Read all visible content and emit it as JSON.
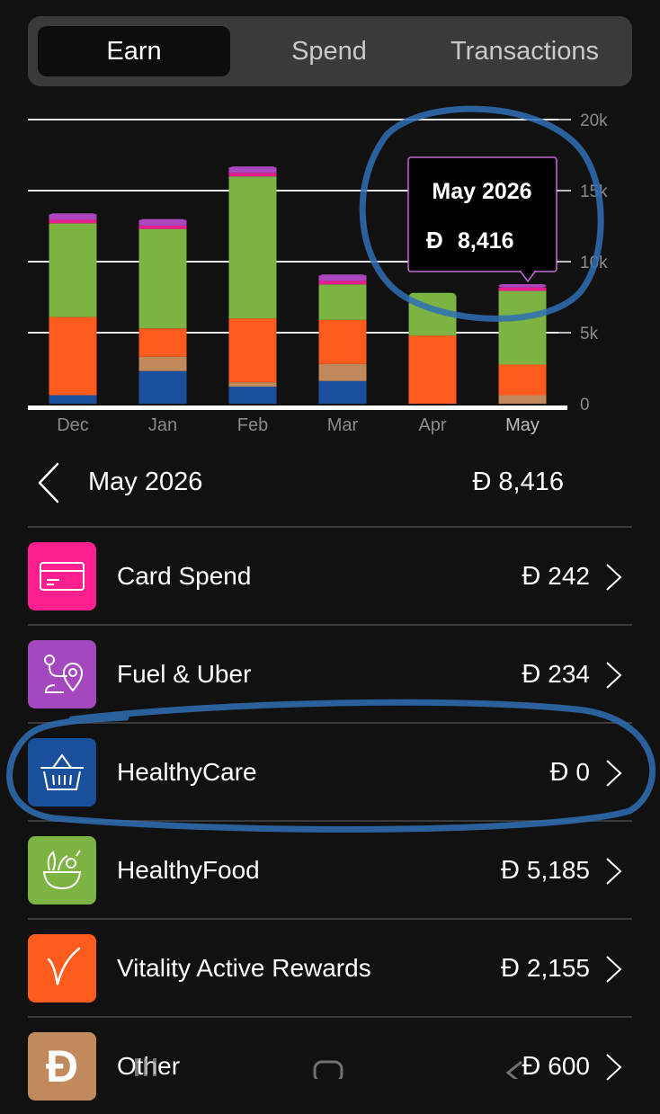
{
  "tabs": [
    {
      "label": "Earn",
      "active": true
    },
    {
      "label": "Spend",
      "active": false
    },
    {
      "label": "Transactions",
      "active": false
    }
  ],
  "chart_data": {
    "type": "bar",
    "stacked": true,
    "categories": [
      "Dec",
      "Jan",
      "Feb",
      "Mar",
      "Apr",
      "May"
    ],
    "y_ticks": [
      "20k",
      "15k",
      "10k",
      "5k",
      "0"
    ],
    "ylim": [
      0,
      20000
    ],
    "grid": true,
    "series": [
      {
        "color": "#1a4f9c",
        "values": [
          600,
          2300,
          1200,
          1600,
          0,
          0
        ]
      },
      {
        "color": "#c08a5c",
        "values": [
          0,
          1000,
          300,
          1200,
          0,
          600
        ]
      },
      {
        "color": "#ff5b1f",
        "values": [
          5500,
          2000,
          4500,
          3100,
          4800,
          2155
        ]
      },
      {
        "color": "#7cb342",
        "values": [
          6600,
          7000,
          10000,
          2500,
          3000,
          5185
        ]
      },
      {
        "color": "#e91e8c",
        "values": [
          250,
          250,
          250,
          250,
          0,
          242
        ]
      },
      {
        "color": "#ab47bc",
        "values": [
          450,
          450,
          450,
          450,
          0,
          234
        ]
      }
    ],
    "tooltip": {
      "title": "May 2026",
      "value": "8,416",
      "category": "May"
    }
  },
  "currency_symbol": "Đ",
  "summary": {
    "month": "May 2026",
    "total": "8,416"
  },
  "categories": [
    {
      "label": "Card Spend",
      "amount": "242",
      "color": "#ff1f8e",
      "icon": "card-icon"
    },
    {
      "label": "Fuel & Uber",
      "amount": "234",
      "color": "#a548c0",
      "icon": "route-pin-icon"
    },
    {
      "label": "HealthyCare",
      "amount": "0",
      "color": "#1a4f9c",
      "icon": "basket-icon"
    },
    {
      "label": "HealthyFood",
      "amount": "5,185",
      "color": "#7cb342",
      "icon": "food-bowl-icon"
    },
    {
      "label": "Vitality Active Rewards",
      "amount": "2,155",
      "color": "#ff5b1f",
      "icon": "vitality-logo-icon"
    },
    {
      "label": "Other",
      "amount": "600",
      "color": "#c08a5c",
      "icon": "dirham-icon"
    }
  ]
}
